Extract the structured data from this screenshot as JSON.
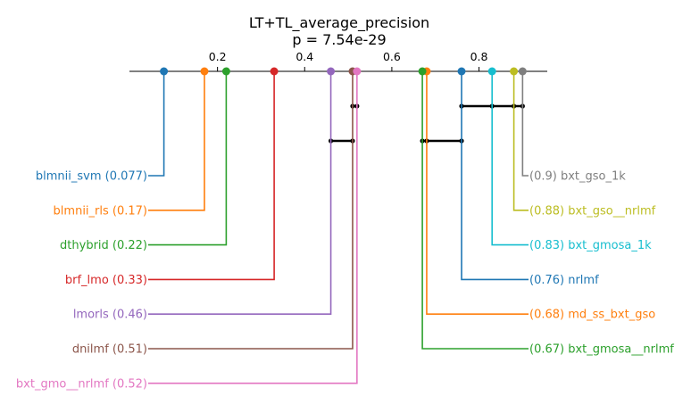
{
  "chart_data": {
    "type": "critical-difference",
    "title": "LT+TL_average_precision",
    "subtitle": "p = 7.54e-29",
    "xlim": [
      0.0,
      0.93
    ],
    "ticks": [
      "0.2",
      "0.4",
      "0.6",
      "0.8"
    ],
    "tick_values": [
      0.2,
      0.4,
      0.6,
      0.8
    ],
    "methods": [
      {
        "name": "blmnii_svm",
        "value": 0.077,
        "label": "blmnii_svm (0.077)",
        "side": "left",
        "color": "#1f77b4"
      },
      {
        "name": "blmnii_rls",
        "value": 0.17,
        "label": "blmnii_rls (0.17)",
        "side": "left",
        "color": "#ff7f0e"
      },
      {
        "name": "dthybrid",
        "value": 0.22,
        "label": "dthybrid (0.22)",
        "side": "left",
        "color": "#2ca02c"
      },
      {
        "name": "brf_lmo",
        "value": 0.33,
        "label": "brf_lmo (0.33)",
        "side": "left",
        "color": "#d62728"
      },
      {
        "name": "lmorls",
        "value": 0.46,
        "label": "lmorls (0.46)",
        "side": "left",
        "color": "#9467bd"
      },
      {
        "name": "dnilmf",
        "value": 0.51,
        "label": "dnilmf (0.51)",
        "side": "left",
        "color": "#8c564b"
      },
      {
        "name": "bxt_gmo__nrlmf",
        "value": 0.52,
        "label": "bxt_gmo__nrlmf (0.52)",
        "side": "left",
        "color": "#e377c2"
      },
      {
        "name": "bxt_gso_1k",
        "value": 0.9,
        "label": "(0.9) bxt_gso_1k",
        "side": "right",
        "color": "#7f7f7f"
      },
      {
        "name": "bxt_gso__nrlmf",
        "value": 0.88,
        "label": "(0.88) bxt_gso__nrlmf",
        "side": "right",
        "color": "#bcbd22"
      },
      {
        "name": "bxt_gmosa_1k",
        "value": 0.83,
        "label": "(0.83) bxt_gmosa_1k",
        "side": "right",
        "color": "#17becf"
      },
      {
        "name": "nrlmf",
        "value": 0.76,
        "label": "(0.76) nrlmf",
        "side": "right",
        "color": "#1f77b4"
      },
      {
        "name": "md_ss_bxt_gso",
        "value": 0.68,
        "label": "(0.68) md_ss_bxt_gso",
        "side": "right",
        "color": "#ff7f0e"
      },
      {
        "name": "bxt_gmosa__nrlmf",
        "value": 0.67,
        "label": "(0.67) bxt_gmosa__nrlmf",
        "side": "right",
        "color": "#2ca02c"
      }
    ],
    "cliques": [
      {
        "from": 0.51,
        "to": 0.52
      },
      {
        "from": 0.46,
        "to": 0.51
      },
      {
        "from": 0.76,
        "to": 0.9
      },
      {
        "from": 0.67,
        "to": 0.76
      }
    ]
  }
}
